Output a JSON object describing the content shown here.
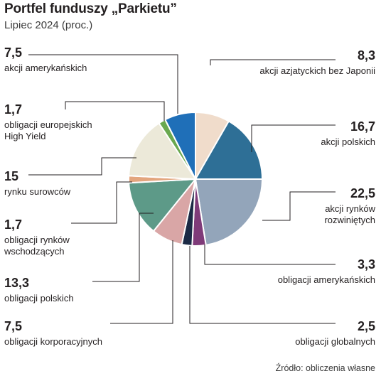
{
  "title": "Portfel funduszy „Parkietu”",
  "subtitle": "Lipiec 2024 (proc.)",
  "source": "Źródło: obliczenia własne",
  "chart_data": {
    "type": "pie",
    "title": "Portfel funduszy „Parkietu”",
    "subtitle": "Lipiec 2024 (proc.)",
    "unit": "proc.",
    "slices": [
      {
        "label": "akcji azjatyckich bez Japonii",
        "value": 8.3,
        "value_label": "8,3",
        "color": "#f0dccb"
      },
      {
        "label": "akcji polskich",
        "value": 16.7,
        "value_label": "16,7",
        "color": "#2e6f96"
      },
      {
        "label": "akcji rynków rozwiniętych",
        "value": 22.5,
        "value_label": "22,5",
        "color": "#93a5ba"
      },
      {
        "label": "obligacji amerykańskich",
        "value": 3.3,
        "value_label": "3,3",
        "color": "#7f3b79"
      },
      {
        "label": "obligacji globalnych",
        "value": 2.5,
        "value_label": "2,5",
        "color": "#1b2a45"
      },
      {
        "label": "obligacji korporacyjnych",
        "value": 7.5,
        "value_label": "7,5",
        "color": "#d9a6a6"
      },
      {
        "label": "obligacji polskich",
        "value": 13.3,
        "value_label": "13,3",
        "color": "#5d9a88"
      },
      {
        "label": "obligacji rynków wschodzących",
        "value": 1.7,
        "value_label": "1,7",
        "color": "#e3a57e"
      },
      {
        "label": "rynku surowców",
        "value": 15,
        "value_label": "15",
        "color": "#ece9d9"
      },
      {
        "label": "obligacji europejskich High Yield",
        "value": 1.7,
        "value_label": "1,7",
        "color": "#6aa84f"
      },
      {
        "label": "akcji amerykańskich",
        "value": 7.5,
        "value_label": "7,5",
        "color": "#1f6fb8"
      }
    ]
  }
}
